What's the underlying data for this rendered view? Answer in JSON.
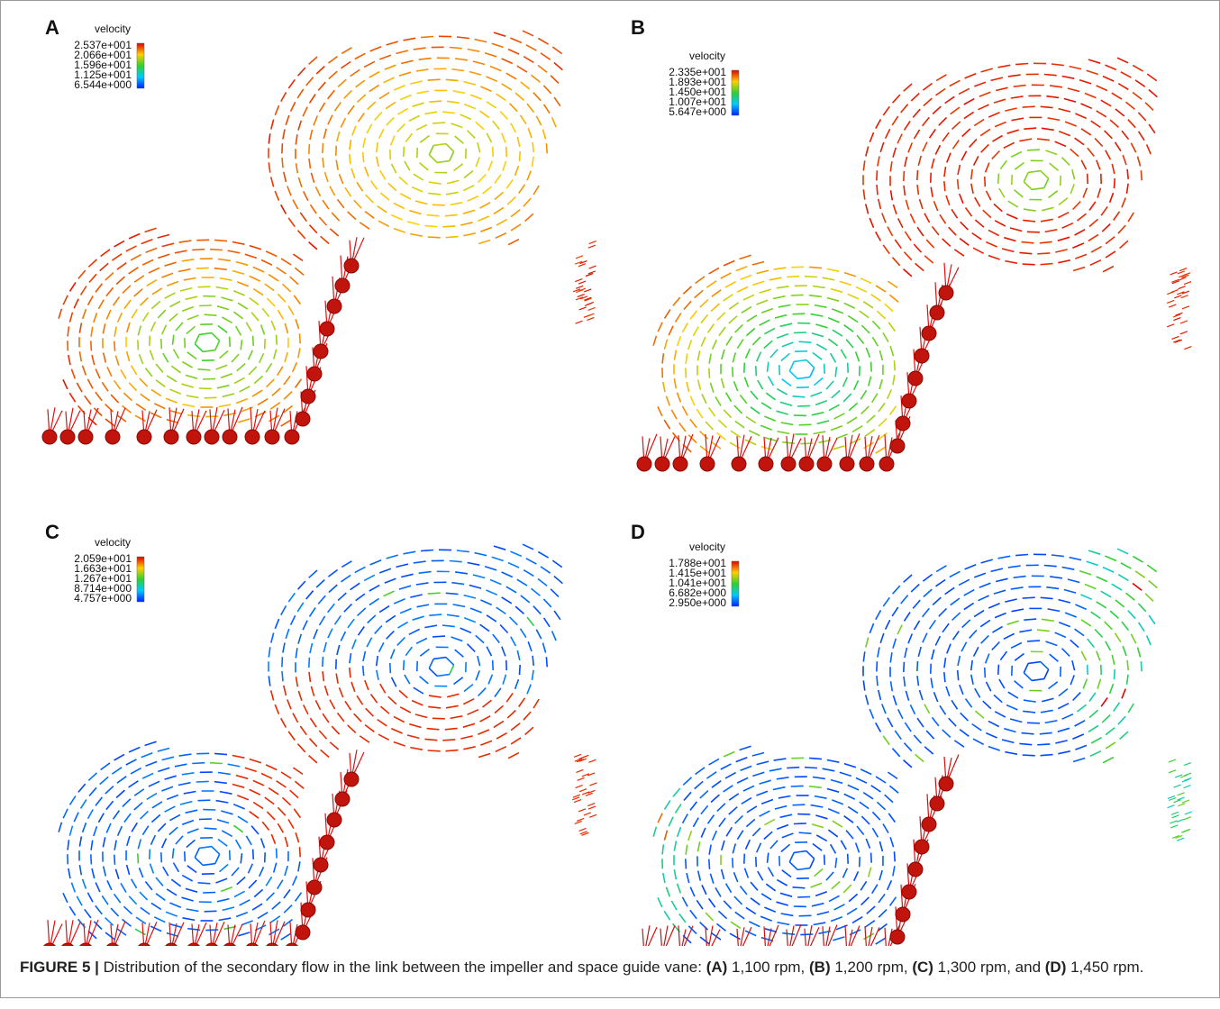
{
  "figure": {
    "panels": [
      {
        "label": "A",
        "legend": {
          "title": "velocity",
          "values": [
            "2.537e+001",
            "2.066e+001",
            "1.596e+001",
            "1.125e+001",
            "6.544e+000"
          ]
        }
      },
      {
        "label": "B",
        "legend": {
          "title": "velocity",
          "values": [
            "2.335e+001",
            "1.893e+001",
            "1.450e+001",
            "1.007e+001",
            "5.647e+000"
          ]
        }
      },
      {
        "label": "C",
        "legend": {
          "title": "velocity",
          "values": [
            "2.059e+001",
            "1.663e+001",
            "1.267e+001",
            "8.714e+000",
            "4.757e+000"
          ]
        }
      },
      {
        "label": "D",
        "legend": {
          "title": "velocity",
          "values": [
            "1.788e+001",
            "1.415e+001",
            "1.041e+001",
            "6.682e+000",
            "2.950e+000"
          ]
        }
      }
    ],
    "caption": {
      "figure_label": "FIGURE 5 |",
      "parts": [
        " Distribution of the secondary flow in the link between the impeller and space guide vane: ",
        "(A)",
        " 1,100 rpm, ",
        "(B)",
        " 1,200 rpm, ",
        "(C)",
        " 1,300 rpm, and ",
        "(D)",
        " 1,450 rpm."
      ]
    }
  }
}
